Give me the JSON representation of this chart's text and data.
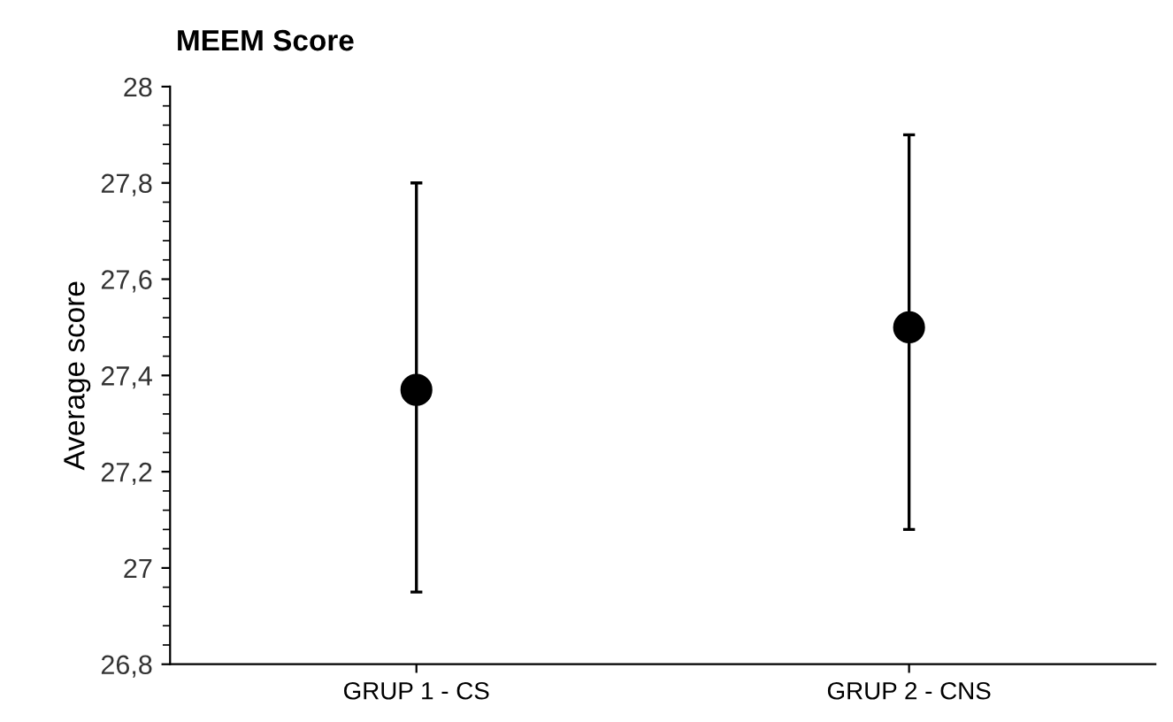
{
  "chart_data": {
    "type": "scatter",
    "title": "MEEM Score",
    "ylabel": "Average score",
    "categories": [
      "GRUP 1 - CS",
      "GRUP 2 - CNS"
    ],
    "values": [
      27.37,
      27.5
    ],
    "errors": [
      [
        26.95,
        27.8
      ],
      [
        27.08,
        27.9
      ]
    ],
    "grid": false,
    "color": "#000000",
    "marker": "circle",
    "ylim": [
      26.8,
      28
    ],
    "yticks": [
      {
        "value": 26.8,
        "label": "26,8"
      },
      27,
      {
        "value": 27.2,
        "label": "27,2"
      },
      {
        "value": 27.4,
        "label": "27,4"
      },
      {
        "value": 27.6,
        "label": "27,6"
      },
      {
        "value": 27.8,
        "label": "27,8"
      },
      28
    ]
  }
}
